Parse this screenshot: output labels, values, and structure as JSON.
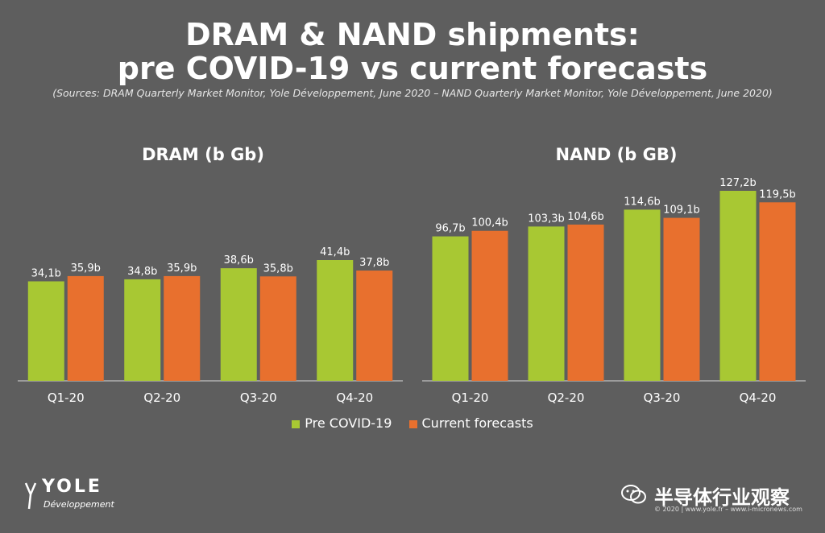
{
  "title_line1": "DRAM & NAND shipments:",
  "title_line2": "pre COVID-19 vs current forecasts",
  "sources": "(Sources: DRAM Quarterly Market Monitor, Yole Développement, June 2020 – NAND Quarterly Market Monitor, Yole Développement, June 2020)",
  "colors": {
    "background": "#5e5e5e",
    "pre": "#a8c833",
    "current": "#e8702e"
  },
  "legend": [
    {
      "label": "Pre COVID-19",
      "color": "#a8c833"
    },
    {
      "label": "Current forecasts",
      "color": "#e8702e"
    }
  ],
  "chart_data": [
    {
      "type": "bar",
      "title": "DRAM (b Gb)",
      "categories": [
        "Q1-20",
        "Q2-20",
        "Q3-20",
        "Q4-20"
      ],
      "series": [
        {
          "name": "Pre COVID-19",
          "values": [
            34.1,
            34.8,
            38.6,
            41.4
          ],
          "labels": [
            "34,1b",
            "34,8b",
            "38,6b",
            "41,4b"
          ]
        },
        {
          "name": "Current forecasts",
          "values": [
            35.9,
            35.9,
            35.8,
            37.8
          ],
          "labels": [
            "35,9b",
            "35,9b",
            "35,8b",
            "37,8b"
          ]
        }
      ],
      "ylim": [
        0,
        45
      ],
      "grid": false
    },
    {
      "type": "bar",
      "title": "NAND (b GB)",
      "categories": [
        "Q1-20",
        "Q2-20",
        "Q3-20",
        "Q4-20"
      ],
      "series": [
        {
          "name": "Pre COVID-19",
          "values": [
            96.7,
            103.3,
            114.6,
            127.2
          ],
          "labels": [
            "96,7b",
            "103,3b",
            "114,6b",
            "127,2b"
          ]
        },
        {
          "name": "Current forecasts",
          "values": [
            100.4,
            104.6,
            109.1,
            119.5
          ],
          "labels": [
            "100,4b",
            "104,6b",
            "109,1b",
            "119,5b"
          ]
        }
      ],
      "ylim": [
        0,
        135
      ],
      "grid": false
    }
  ],
  "logo": {
    "name": "YOLE",
    "subtitle": "Développement"
  },
  "watermark": "半导体行业观察",
  "footer": "© 2020 | www.yole.fr – www.i-micronews.com"
}
